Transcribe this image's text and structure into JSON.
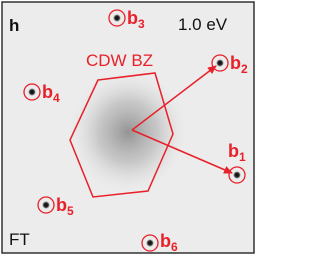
{
  "panel_label": "h",
  "energy": "1.0 eV",
  "zone_label": "CDW BZ",
  "image_label": "FT",
  "peaks": [
    {
      "label": "b",
      "index": "1"
    },
    {
      "label": "b",
      "index": "2"
    },
    {
      "label": "b",
      "index": "3"
    },
    {
      "label": "b",
      "index": "4"
    },
    {
      "label": "b",
      "index": "5"
    },
    {
      "label": "b",
      "index": "6"
    }
  ]
}
